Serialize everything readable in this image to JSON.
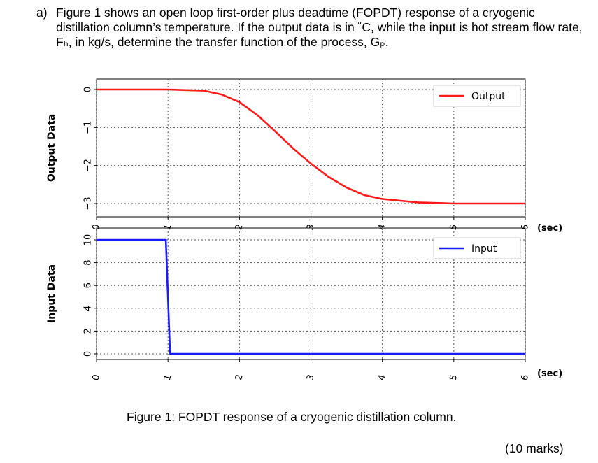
{
  "question": {
    "label": "a)",
    "text": "Figure 1 shows an open loop first-order plus deadtime (FOPDT) response of a cryogenic distillation column’s temperature. If the output data is in ˚C, while the input is hot stream flow rate, Fₕ, in kg/s, determine the transfer function of the process, Gₚ."
  },
  "caption": "Figure 1: FOPDT response of a cryogenic distillation column.",
  "marks": "(10 marks)",
  "chart_data": [
    {
      "type": "line",
      "ylabel": "Output Data",
      "xlabel": "(sec)",
      "xlim": [
        0,
        6
      ],
      "ylim": [
        -3,
        0
      ],
      "xticks": [
        "0",
        "1",
        "2",
        "3",
        "4",
        "5",
        "6"
      ],
      "yticks": [
        "0",
        "−1",
        "−2",
        "−3"
      ],
      "grid": true,
      "legend_position": "top-right",
      "color": "#ff1a1a",
      "series": [
        {
          "name": "Output",
          "x": [
            0,
            1,
            1.5,
            1.75,
            2.0,
            2.25,
            2.5,
            2.75,
            3.0,
            3.25,
            3.5,
            3.75,
            4.0,
            4.5,
            5.0,
            6.0
          ],
          "y": [
            0,
            0,
            -0.03,
            -0.13,
            -0.33,
            -0.67,
            -1.1,
            -1.55,
            -1.95,
            -2.3,
            -2.58,
            -2.78,
            -2.88,
            -2.97,
            -3.0,
            -3.0
          ]
        }
      ]
    },
    {
      "type": "line",
      "ylabel": "Input Data",
      "xlabel": "(sec)",
      "xlim": [
        0,
        6
      ],
      "ylim": [
        0,
        10
      ],
      "xticks": [
        "0",
        "1",
        "2",
        "3",
        "4",
        "5",
        "6"
      ],
      "yticks": [
        "10",
        "8",
        "6",
        "4",
        "2",
        "0"
      ],
      "grid": true,
      "legend_position": "top-right",
      "color": "#1a1aff",
      "series": [
        {
          "name": "Input",
          "x": [
            0,
            0.97,
            1.03,
            6.0
          ],
          "y": [
            10,
            10,
            0,
            0
          ]
        }
      ]
    }
  ]
}
